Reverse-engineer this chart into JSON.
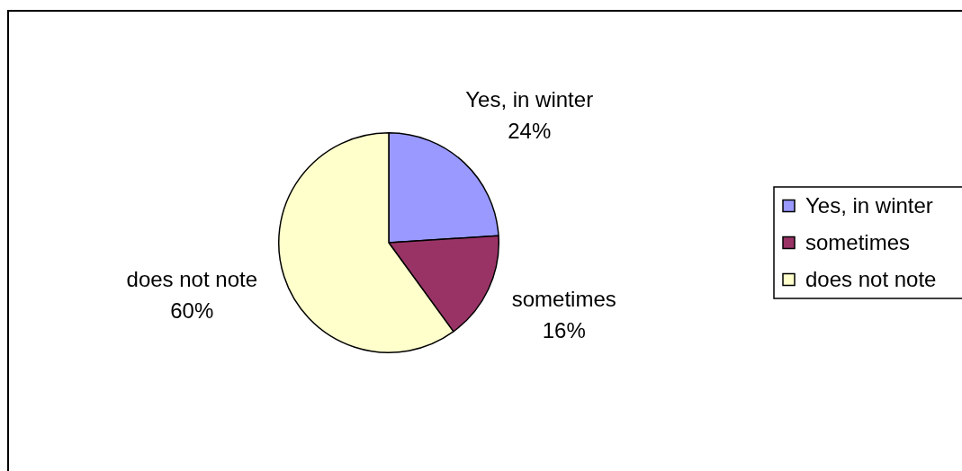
{
  "chart_data": {
    "type": "pie",
    "categories": [
      "Yes, in winter",
      "sometimes",
      "does not note"
    ],
    "values": [
      24,
      16,
      60
    ],
    "colors": [
      "#9999ff",
      "#993366",
      "#ffffcc"
    ],
    "value_labels": [
      "24%",
      "16%",
      "60%"
    ],
    "legend": "right"
  }
}
